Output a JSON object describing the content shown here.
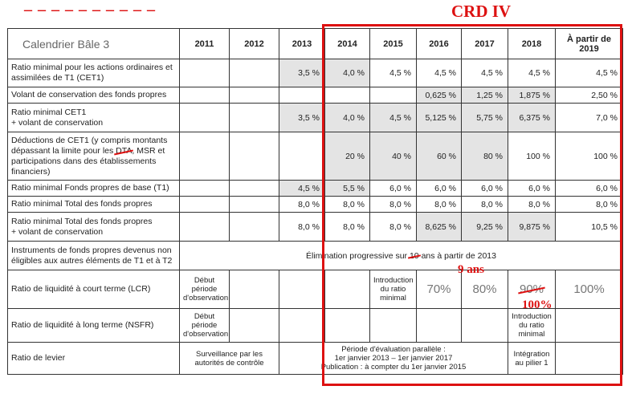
{
  "overlay": {
    "crd_label": "CRD IV",
    "annotation_9ans": "9 ans",
    "annotation_100": "100%"
  },
  "header": {
    "title": "Calendrier Bâle 3",
    "years": [
      "2011",
      "2012",
      "2013",
      "2014",
      "2015",
      "2016",
      "2017",
      "2018",
      "À partir de 2019"
    ]
  },
  "rows": {
    "cet1": {
      "label": "Ratio minimal pour les actions ordinaires et assimilées de T1 (CET1)",
      "v2013": "3,5 %",
      "v2014": "4,0 %",
      "v2015": "4,5 %",
      "v2016": "4,5 %",
      "v2017": "4,5 %",
      "v2018": "4,5 %",
      "v2019": "4,5 %"
    },
    "volant": {
      "label": "Volant de conservation des fonds propres",
      "v2016": "0,625 %",
      "v2017": "1,25 %",
      "v2018": "1,875 %",
      "v2019": "2,50 %"
    },
    "cet1_volant": {
      "label_1": "Ratio minimal CET1",
      "label_2": "+ volant de conservation",
      "v2013": "3,5 %",
      "v2014": "4,0 %",
      "v2015": "4,5 %",
      "v2016": "5,125 %",
      "v2017": "5,75 %",
      "v2018": "6,375 %",
      "v2019": "7,0 %"
    },
    "deductions": {
      "label_a": "Déductions de CET1 (y compris montants dépassant la limite pour les ",
      "label_struck": "DTA",
      "label_b": ", MSR et participations dans des établissements financiers)",
      "v2014": "20 %",
      "v2015": "40 %",
      "v2016": "60 %",
      "v2017": "80 %",
      "v2018": "100 %",
      "v2019": "100 %"
    },
    "t1": {
      "label": "Ratio minimal Fonds propres de base (T1)",
      "v2013": "4,5 %",
      "v2014": "5,5 %",
      "v2015": "6,0 %",
      "v2016": "6,0 %",
      "v2017": "6,0 %",
      "v2018": "6,0 %",
      "v2019": "6,0 %"
    },
    "total": {
      "label": "Ratio minimal Total des fonds propres",
      "v2013": "8,0 %",
      "v2014": "8,0 %",
      "v2015": "8,0 %",
      "v2016": "8,0 %",
      "v2017": "8,0 %",
      "v2018": "8,0 %",
      "v2019": "8,0 %"
    },
    "total_volant": {
      "label_1": "Ratio minimal Total des fonds propres",
      "label_2": "+ volant de conservation",
      "v2013": "8,0 %",
      "v2014": "8,0 %",
      "v2015": "8,0 %",
      "v2016": "8,625 %",
      "v2017": "9,25 %",
      "v2018": "9,875 %",
      "v2019": "10,5 %"
    },
    "instruments": {
      "label": "Instruments de fonds propres devenus non éligibles aux autres éléments de T1 et à T2",
      "note_a": "Élimination progressive sur ",
      "note_struck": "10",
      "note_b": " ans à partir de 2013"
    },
    "lcr": {
      "label": "Ratio de liquidité à court terme (LCR)",
      "debut": "Début période d'observation",
      "intro": "Introduction du ratio minimal",
      "v2016": "70%",
      "v2017": "80%",
      "v2018": "90%",
      "v2019": "100%"
    },
    "nsfr": {
      "label": "Ratio de liquidité à long terme (NSFR)",
      "debut": "Début période d'observation",
      "intro": "Introduction du ratio minimal"
    },
    "levier": {
      "label": "Ratio de levier",
      "surveillance": "Surveillance par les autorités de contrôle",
      "eval_1": "Période d'évaluation parallèle :",
      "eval_2": "1er janvier 2013 – 1er janvier 2017",
      "eval_3": "Publication : à compter du 1er janvier 2015",
      "integration": "Intégration au pilier 1"
    }
  }
}
